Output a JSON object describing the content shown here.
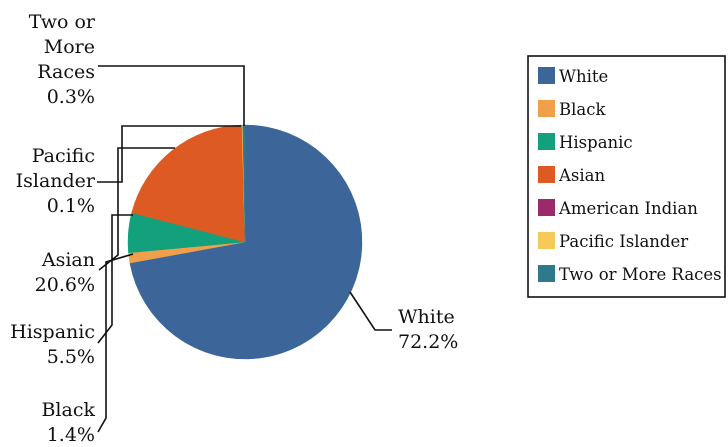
{
  "chart_data": {
    "type": "pie",
    "slices": [
      {
        "name": "White",
        "value": 72.2,
        "display": "72.2%",
        "color": "#3c6699"
      },
      {
        "name": "Black",
        "value": 1.4,
        "display": "1.4%",
        "color": "#f0a04b"
      },
      {
        "name": "Hispanic",
        "value": 5.5,
        "display": "5.5%",
        "color": "#13a07c"
      },
      {
        "name": "Asian",
        "value": 20.6,
        "display": "20.6%",
        "color": "#dd5a22"
      },
      {
        "name": "American Indian",
        "value": 0.0,
        "display": "",
        "color": "#9c2a6a"
      },
      {
        "name": "Pacific Islander",
        "value": 0.1,
        "display": "0.1%",
        "color": "#f7c95a"
      },
      {
        "name": "Two or More Races",
        "value": 0.3,
        "display": "0.3%",
        "color": "#2e7a8c"
      }
    ],
    "callout_labels": [
      {
        "slice": "White",
        "lines": [
          "White",
          "72.2%"
        ]
      },
      {
        "slice": "Two or More Races",
        "lines": [
          "Two or",
          "More",
          "Races",
          "0.3%"
        ]
      },
      {
        "slice": "Pacific Islander",
        "lines": [
          "Pacific",
          "Islander",
          "0.1%"
        ]
      },
      {
        "slice": "Asian",
        "lines": [
          "Asian",
          "20.6%"
        ]
      },
      {
        "slice": "Hispanic",
        "lines": [
          "Hispanic",
          "5.5%"
        ]
      },
      {
        "slice": "Black",
        "lines": [
          "Black",
          "1.4%"
        ]
      }
    ],
    "legend": {
      "placement": "right",
      "entries": [
        "White",
        "Black",
        "Hispanic",
        "Asian",
        "American Indian",
        "Pacific Islander",
        "Two or More Races"
      ]
    }
  }
}
